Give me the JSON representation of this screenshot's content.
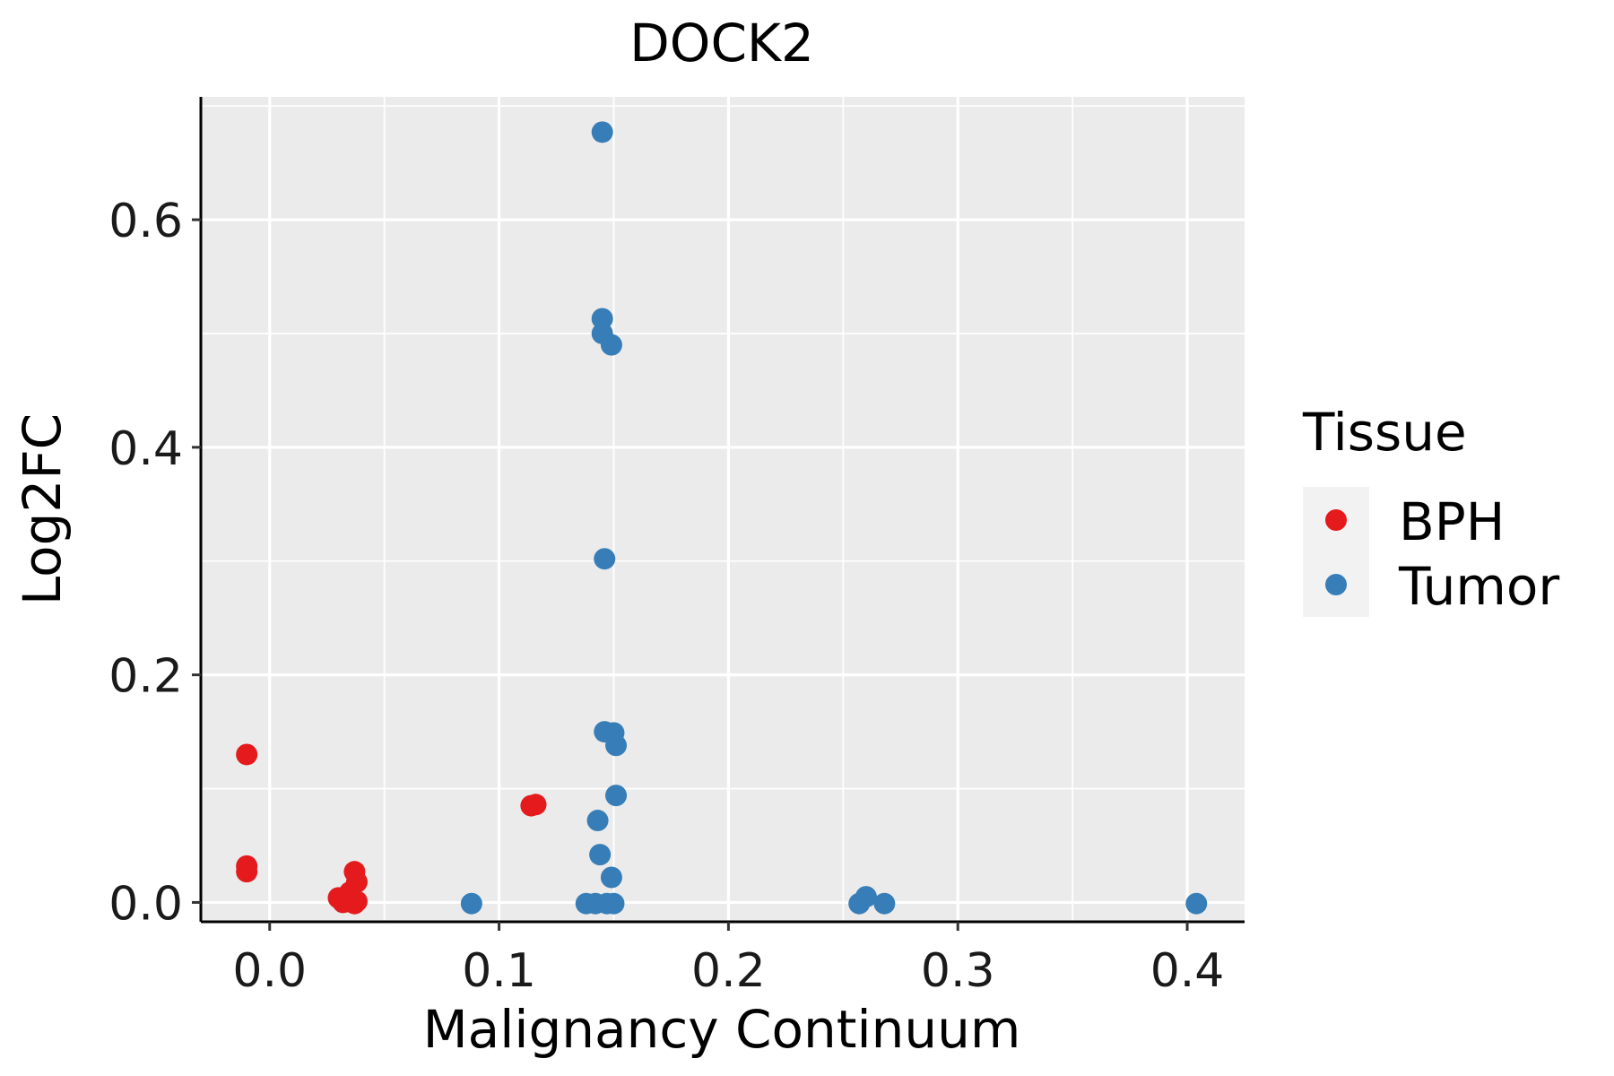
{
  "chart_data": {
    "type": "scatter",
    "title": "DOCK2",
    "xlabel": "Malignancy Continuum",
    "ylabel": "Log2FC",
    "xlim": [
      -0.03,
      0.425
    ],
    "ylim": [
      -0.017,
      0.708
    ],
    "x_ticks": [
      0.0,
      0.1,
      0.2,
      0.3,
      0.4
    ],
    "x_tick_labels": [
      "0.0",
      "0.1",
      "0.2",
      "0.3",
      "0.4"
    ],
    "y_ticks": [
      0.0,
      0.2,
      0.4,
      0.6
    ],
    "y_tick_labels": [
      "0.0",
      "0.2",
      "0.4",
      "0.6"
    ],
    "grid": true,
    "legend": {
      "title": "Tissue",
      "position": "right"
    },
    "series": [
      {
        "name": "BPH",
        "color": "#E41A1C",
        "points": [
          [
            -0.01,
            0.13
          ],
          [
            -0.01,
            0.032
          ],
          [
            -0.01,
            0.027
          ],
          [
            0.037,
            0.027
          ],
          [
            0.038,
            0.018
          ],
          [
            0.035,
            0.009
          ],
          [
            0.03,
            0.004
          ],
          [
            0.032,
            0.0
          ],
          [
            0.034,
            0.002
          ],
          [
            0.036,
            0.0
          ],
          [
            0.038,
            0.001
          ],
          [
            0.037,
            -0.001
          ],
          [
            0.114,
            0.085
          ],
          [
            0.116,
            0.086
          ]
        ]
      },
      {
        "name": "Tumor",
        "color": "#377EB8",
        "points": [
          [
            0.145,
            0.677
          ],
          [
            0.145,
            0.513
          ],
          [
            0.145,
            0.5
          ],
          [
            0.149,
            0.49
          ],
          [
            0.146,
            0.302
          ],
          [
            0.146,
            0.15
          ],
          [
            0.15,
            0.149
          ],
          [
            0.151,
            0.138
          ],
          [
            0.151,
            0.094
          ],
          [
            0.143,
            0.072
          ],
          [
            0.144,
            0.042
          ],
          [
            0.149,
            0.022
          ],
          [
            0.088,
            -0.001
          ],
          [
            0.138,
            -0.001
          ],
          [
            0.142,
            -0.001
          ],
          [
            0.147,
            -0.001
          ],
          [
            0.15,
            -0.001
          ],
          [
            0.26,
            0.005
          ],
          [
            0.257,
            -0.001
          ],
          [
            0.268,
            -0.001
          ],
          [
            0.404,
            -0.001
          ]
        ]
      }
    ]
  }
}
